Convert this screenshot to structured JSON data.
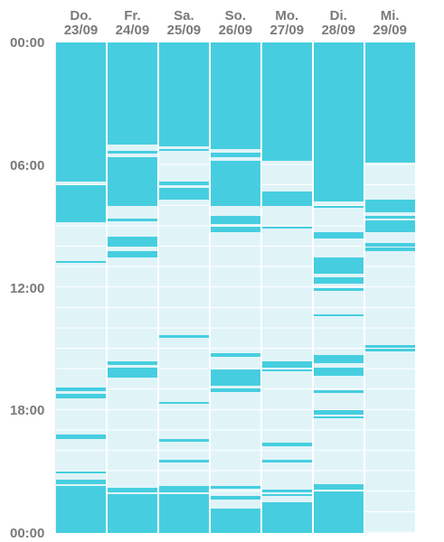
{
  "hours_per_day": 24,
  "colors": {
    "busy": "#46cee0",
    "free": "#e0f4f8",
    "text": "#7a7a7a"
  },
  "time_labels": [
    "00:00",
    "06:00",
    "12:00",
    "18:00",
    "00:00"
  ],
  "days": [
    {
      "weekday": "Do.",
      "date": "23/09",
      "busy": [
        [
          0,
          4.5
        ],
        [
          4.5,
          6.8
        ],
        [
          7.0,
          8.8
        ],
        [
          10.7,
          10.8
        ],
        [
          16.9,
          17.05
        ],
        [
          17.2,
          17.4
        ],
        [
          19.2,
          19.4
        ],
        [
          21.0,
          21.1
        ],
        [
          21.4,
          21.6
        ],
        [
          21.7,
          24
        ]
      ]
    },
    {
      "weekday": "Fr.",
      "date": "24/09",
      "busy": [
        [
          0,
          5.0
        ],
        [
          5.3,
          5.45
        ],
        [
          5.6,
          8.0
        ],
        [
          8.6,
          8.75
        ],
        [
          9.5,
          10.0
        ],
        [
          10.2,
          10.5
        ],
        [
          15.6,
          15.8
        ],
        [
          15.9,
          16.4
        ],
        [
          21.8,
          22.0
        ],
        [
          22.1,
          24
        ]
      ]
    },
    {
      "weekday": "Sa.",
      "date": "25/09",
      "busy": [
        [
          0,
          5.1
        ],
        [
          5.2,
          5.3
        ],
        [
          6.8,
          7.0
        ],
        [
          7.1,
          7.7
        ],
        [
          14.3,
          14.45
        ],
        [
          17.6,
          17.7
        ],
        [
          19.4,
          19.55
        ],
        [
          20.4,
          20.55
        ],
        [
          21.7,
          22.0
        ],
        [
          22.1,
          24
        ]
      ]
    },
    {
      "weekday": "So.",
      "date": "26/09",
      "busy": [
        [
          0,
          5.2
        ],
        [
          5.4,
          5.6
        ],
        [
          5.8,
          8.0
        ],
        [
          8.5,
          8.9
        ],
        [
          9.0,
          9.3
        ],
        [
          15.2,
          15.4
        ],
        [
          16.0,
          16.8
        ],
        [
          16.95,
          17.1
        ],
        [
          21.7,
          21.85
        ],
        [
          22.2,
          22.35
        ],
        [
          22.8,
          24
        ]
      ]
    },
    {
      "weekday": "Mo.",
      "date": "27/09",
      "busy": [
        [
          0,
          5.8
        ],
        [
          7.3,
          8.0
        ],
        [
          9.0,
          9.1
        ],
        [
          15.6,
          15.9
        ],
        [
          16.0,
          16.1
        ],
        [
          19.6,
          19.75
        ],
        [
          20.4,
          20.55
        ],
        [
          21.9,
          22.0
        ],
        [
          22.1,
          22.2
        ],
        [
          22.5,
          24
        ]
      ]
    },
    {
      "weekday": "Di.",
      "date": "28/09",
      "busy": [
        [
          0,
          7.8
        ],
        [
          8.0,
          8.1
        ],
        [
          9.3,
          9.6
        ],
        [
          10.5,
          11.3
        ],
        [
          11.5,
          11.8
        ],
        [
          12.0,
          12.15
        ],
        [
          13.3,
          13.4
        ],
        [
          15.3,
          15.7
        ],
        [
          15.9,
          16.3
        ],
        [
          17.0,
          17.15
        ],
        [
          18.0,
          18.2
        ],
        [
          18.3,
          18.4
        ],
        [
          21.6,
          21.9
        ],
        [
          21.95,
          24
        ]
      ]
    },
    {
      "weekday": "Mi.",
      "date": "29/09",
      "busy": [
        [
          0,
          5.9
        ],
        [
          7.7,
          8.3
        ],
        [
          8.5,
          8.6
        ],
        [
          8.7,
          9.3
        ],
        [
          9.8,
          10.0
        ],
        [
          10.05,
          10.2
        ],
        [
          14.8,
          14.95
        ],
        [
          15.0,
          15.1
        ]
      ]
    }
  ]
}
